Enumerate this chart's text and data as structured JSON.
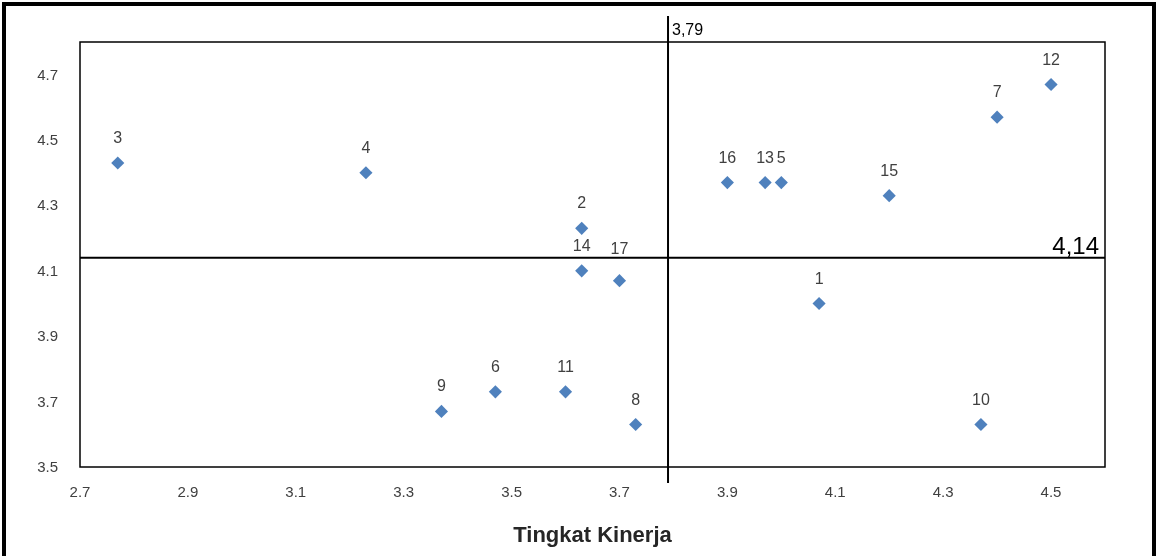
{
  "chart_data": {
    "type": "scatter",
    "xlabel": "Tingkat Kinerja",
    "x": [
      4.07,
      3.63,
      2.77,
      3.23,
      4.0,
      3.47,
      4.4,
      3.73,
      3.37,
      4.37,
      3.6,
      4.5,
      3.97,
      3.63,
      4.2,
      3.9,
      3.7
    ],
    "series": [
      {
        "color": "#4f81bd",
        "values": [
          4.0,
          4.23,
          4.43,
          4.4,
          4.37,
          3.73,
          4.57,
          3.63,
          3.67,
          3.63,
          3.73,
          4.67,
          4.37,
          4.1,
          4.33,
          4.37,
          4.07
        ]
      }
    ],
    "annotations": [
      {
        "text": "1",
        "x": 4.07,
        "y": 4.0
      },
      {
        "text": "2",
        "x": 3.63,
        "y": 4.23
      },
      {
        "text": "3",
        "x": 2.77,
        "y": 4.43
      },
      {
        "text": "4",
        "x": 3.23,
        "y": 4.4
      },
      {
        "text": "5",
        "x": 4.0,
        "y": 4.37
      },
      {
        "text": "6",
        "x": 3.47,
        "y": 3.73
      },
      {
        "text": "7",
        "x": 4.4,
        "y": 4.57
      },
      {
        "text": "8",
        "x": 3.73,
        "y": 3.63
      },
      {
        "text": "9",
        "x": 3.37,
        "y": 3.67
      },
      {
        "text": "10",
        "x": 4.37,
        "y": 3.63
      },
      {
        "text": "11",
        "x": 3.6,
        "y": 3.73
      },
      {
        "text": "12",
        "x": 4.5,
        "y": 4.67
      },
      {
        "text": "13",
        "x": 3.97,
        "y": 4.37
      },
      {
        "text": "14",
        "x": 3.63,
        "y": 4.1
      },
      {
        "text": "15",
        "x": 4.2,
        "y": 4.33
      },
      {
        "text": "16",
        "x": 3.9,
        "y": 4.37
      },
      {
        "text": "17",
        "x": 3.7,
        "y": 4.07
      }
    ],
    "ref_lines": [
      {
        "axis": "x",
        "value": 3.79,
        "label": "3,79",
        "color": "#000000"
      },
      {
        "axis": "y",
        "value": 4.14,
        "label": "4,14",
        "color": "#000000"
      }
    ],
    "xlim": [
      2.7,
      4.6
    ],
    "xticks": [
      2.7,
      2.9,
      3.1,
      3.3,
      3.5,
      3.7,
      3.9,
      4.1,
      4.3,
      4.5
    ],
    "ylim": [
      3.5,
      4.8
    ],
    "yticks": [
      3.5,
      3.7,
      3.9,
      4.1,
      4.3,
      4.5,
      4.7
    ],
    "marker": "diamond",
    "grid": false
  }
}
